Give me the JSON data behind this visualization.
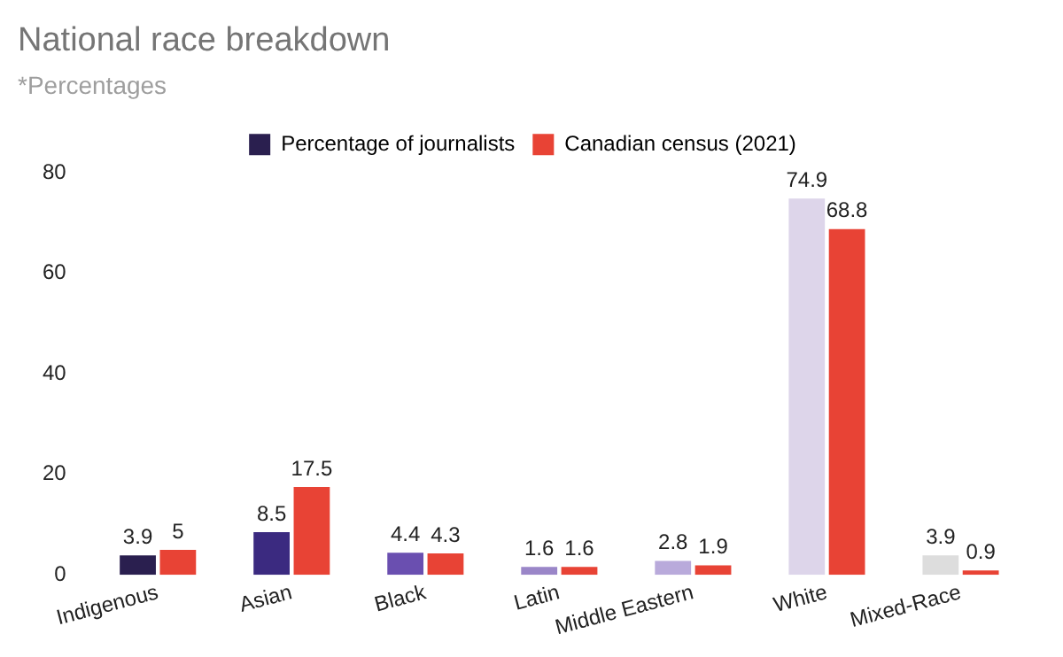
{
  "chart_data": {
    "type": "bar",
    "title": "National race breakdown",
    "subtitle": "*Percentages",
    "categories": [
      "Indigenous",
      "Asian",
      "Black",
      "Latin",
      "Middle Eastern",
      "White",
      "Mixed-Race"
    ],
    "series": [
      {
        "name": "Percentage of journalists",
        "color": "#2a1f4f",
        "colors": [
          "#2a1f4f",
          "#3b2a80",
          "#6a4fb0",
          "#9a86c8",
          "#b9aadb",
          "#ddd5ea",
          "#dddddd"
        ],
        "values": [
          3.9,
          8.5,
          4.4,
          1.6,
          2.8,
          74.9,
          3.9
        ]
      },
      {
        "name": "Canadian census (2021)",
        "color": "#e84335",
        "values": [
          5,
          17.5,
          4.3,
          1.6,
          1.9,
          68.8,
          0.9
        ]
      }
    ],
    "ylim": [
      0,
      80
    ],
    "yticks": [
      0,
      20,
      40,
      60,
      80
    ],
    "grid": false,
    "legend": "top",
    "data_labels": true
  }
}
